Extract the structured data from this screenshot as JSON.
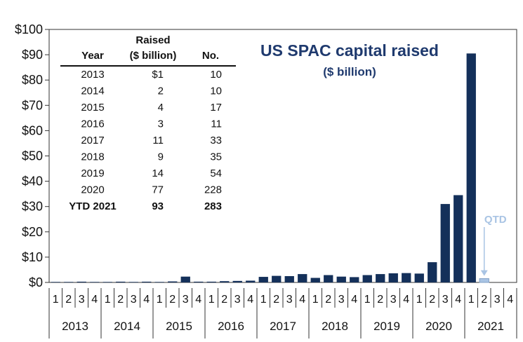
{
  "chart_data": {
    "type": "bar",
    "title": "US SPAC capital raised",
    "subtitle": "($ billion)",
    "y_ticks": [
      "$0",
      "$10",
      "$20",
      "$30",
      "$40",
      "$50",
      "$60",
      "$70",
      "$80",
      "$90",
      "$100"
    ],
    "ylim": [
      0,
      100
    ],
    "grid": false,
    "quarter_labels": [
      "1",
      "2",
      "3",
      "4",
      "1",
      "2",
      "3",
      "4",
      "1",
      "2",
      "3",
      "4",
      "1",
      "2",
      "3",
      "4",
      "1",
      "2",
      "3",
      "4",
      "1",
      "2",
      "3",
      "4",
      "1",
      "2",
      "3",
      "4",
      "1",
      "2",
      "3",
      "4",
      "1",
      "2",
      "3",
      "4"
    ],
    "years": [
      "2013",
      "2014",
      "2015",
      "2016",
      "2017",
      "2018",
      "2019",
      "2020",
      "2021"
    ],
    "series": [
      {
        "name": "",
        "color": "#14305a",
        "values": [
          0.2,
          0.2,
          0.3,
          0.2,
          0.2,
          0.3,
          0.2,
          0.3,
          0.2,
          0.4,
          2.3,
          0.3,
          0.3,
          0.5,
          0.6,
          0.7,
          2.2,
          2.6,
          2.5,
          3.3,
          1.8,
          2.9,
          2.3,
          2.1,
          2.9,
          3.3,
          3.6,
          3.7,
          3.5,
          8.0,
          31.0,
          34.5,
          90.5,
          1.5,
          null,
          null
        ]
      }
    ],
    "highlight": {
      "index": 33,
      "label": "QTD",
      "color": "#a9c4e4"
    },
    "table": {
      "headers": [
        "Year",
        "Raised",
        "($ billion)",
        "No."
      ],
      "rows": [
        [
          "2013",
          "$1",
          "10"
        ],
        [
          "2014",
          "2",
          "10"
        ],
        [
          "2015",
          "4",
          "17"
        ],
        [
          "2016",
          "3",
          "11"
        ],
        [
          "2017",
          "11",
          "33"
        ],
        [
          "2018",
          "9",
          "35"
        ],
        [
          "2019",
          "14",
          "54"
        ],
        [
          "2020",
          "77",
          "228"
        ],
        [
          "YTD 2021",
          "93",
          "283"
        ]
      ]
    }
  }
}
